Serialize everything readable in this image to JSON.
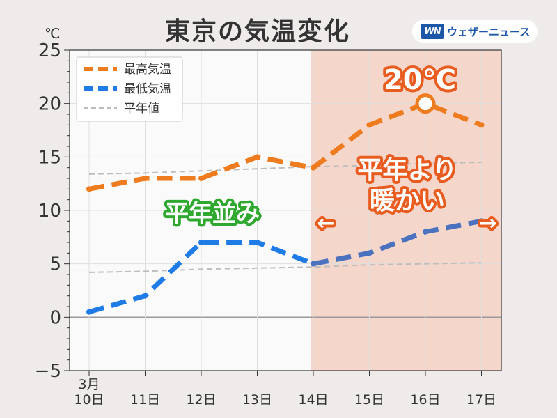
{
  "title": "東京の気温変化",
  "unit": "℃",
  "logo": {
    "mark": "WN",
    "text": "ウェザーニュース"
  },
  "colors": {
    "max": "#ee7b1d",
    "max_forecast": "#ee7b1d",
    "min": "#1f7be6",
    "min_forecast": "#4a72bf",
    "normal": "#bdbdbd",
    "forecast_bg": "#f5d6cb",
    "plot_bg": "#fbfafa",
    "green_callout": "#2ea82e",
    "orange_callout": "#e85c20"
  },
  "chart_data": {
    "type": "line",
    "x": [
      "3月\n10日",
      "11日",
      "12日",
      "13日",
      "14日",
      "15日",
      "16日",
      "17日"
    ],
    "ylim": [
      -5,
      25
    ],
    "yticks": [
      -5,
      0,
      5,
      10,
      15,
      20,
      25
    ],
    "ytick_labels": [
      "−5",
      "0",
      "5",
      "10",
      "15",
      "20",
      "25"
    ],
    "grid": true,
    "legend_position": "top-left",
    "forecast_from_index": 4,
    "series": [
      {
        "name": "最高気温",
        "values": [
          12,
          13,
          13,
          15,
          14,
          18,
          20,
          18
        ]
      },
      {
        "name": "最低気温",
        "values": [
          0.5,
          2,
          7,
          7,
          5,
          6,
          8,
          9
        ]
      },
      {
        "name": "平年値",
        "values": [
          13.4,
          13.5,
          13.7,
          13.9,
          14.1,
          14.2,
          14.4,
          14.5
        ]
      },
      {
        "name": "平年値",
        "values": [
          4.2,
          4.3,
          4.5,
          4.6,
          4.7,
          4.9,
          5.0,
          5.1
        ]
      }
    ],
    "annotations": {
      "peak": "20℃",
      "peak_index": 6,
      "normal_like": "平年並み",
      "warmer_line1": "平年より",
      "warmer_line2": "暖かい",
      "arrow_left": "←",
      "arrow_right": "→"
    }
  }
}
